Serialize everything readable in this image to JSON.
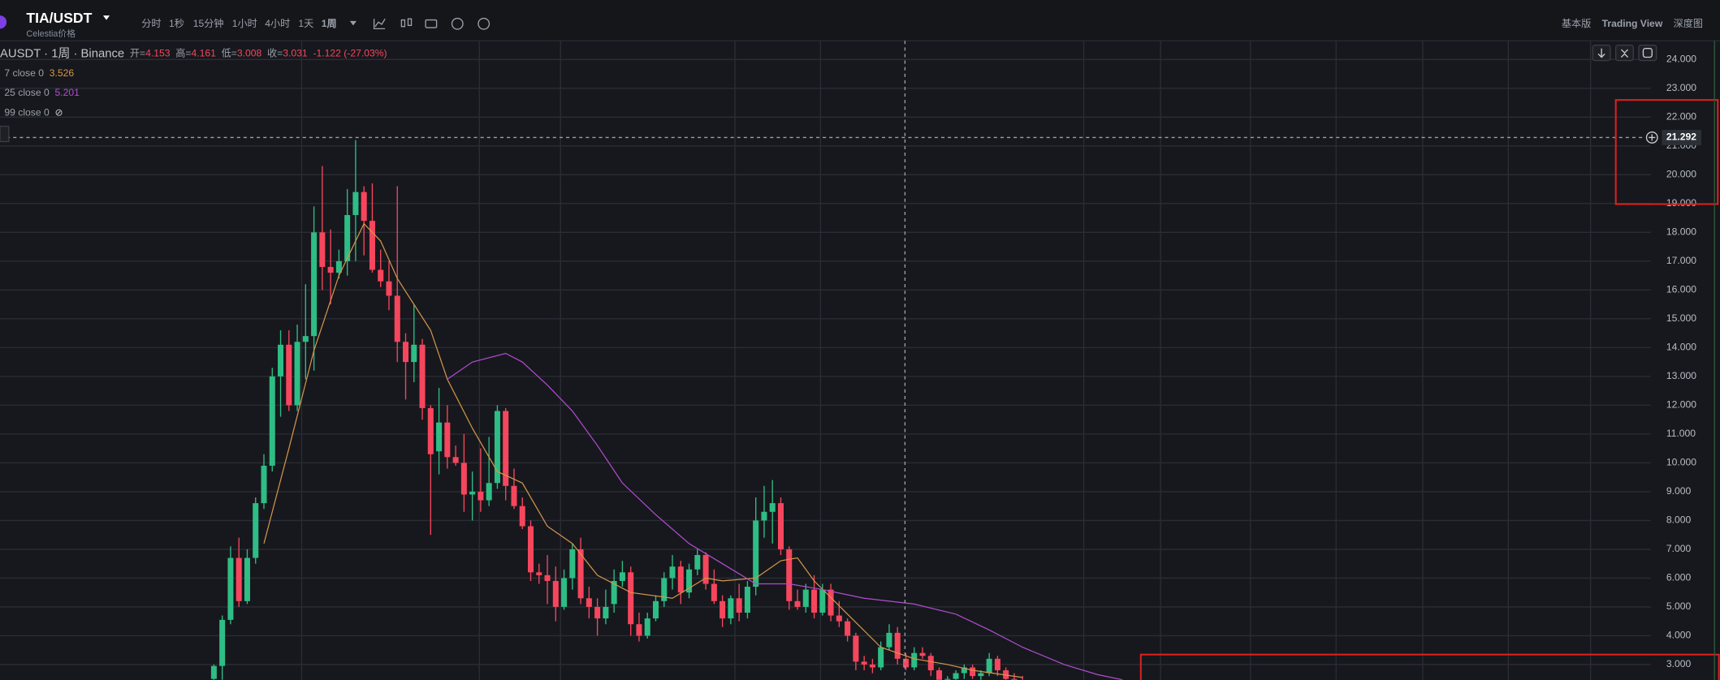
{
  "header": {
    "symbol": "TIA/USDT",
    "subtitle": "Celestia价格",
    "timeframes": [
      "分时",
      "1秒",
      "15分钟",
      "1小时",
      "4小时",
      "1天",
      "1周"
    ],
    "views": [
      "基本版",
      "Trading View",
      "深度图"
    ]
  },
  "chart_data": {
    "type": "candlestick",
    "title": "AUSDT · 1周 · Binance",
    "ohlc_labels": [
      "开=",
      "高=",
      "低=",
      "收="
    ],
    "ohlc_values": [
      4.153,
      4.161,
      3.008,
      3.031
    ],
    "change": "-1.122 (-27.03%)",
    "up_color": "#2ebd85",
    "down_color": "#f6465d",
    "candles": {
      "open": [
        2.5,
        2.95,
        4.55,
        6.7,
        5.2,
        6.7,
        8.6,
        9.9,
        13.0,
        14.1,
        12.0,
        14.2,
        14.4,
        18.0,
        16.8,
        16.6,
        17.0,
        18.6,
        19.4,
        18.4,
        16.7,
        16.3,
        15.8,
        14.2,
        13.5,
        14.1,
        11.9,
        10.4,
        11.4,
        10.2,
        10.0,
        8.9,
        9.0,
        8.7,
        9.3,
        11.8,
        9.2,
        8.5,
        7.8,
        6.2,
        6.1,
        5.9,
        5.0,
        6.0,
        7.0,
        5.3,
        5.0,
        4.6,
        5.1,
        5.9,
        6.2,
        4.4,
        4.0,
        4.6,
        5.2,
        6.0,
        6.4,
        5.5,
        6.3,
        6.8,
        5.8,
        5.2,
        4.6,
        5.3,
        4.8,
        5.7,
        8.0,
        8.3,
        8.6,
        7.0,
        5.2,
        5.0,
        5.6,
        4.8,
        5.6,
        4.7,
        4.5,
        4.0,
        3.1,
        3.0,
        2.9,
        3.6,
        4.1,
        3.2,
        2.9,
        3.4,
        3.3,
        2.8,
        2.4,
        2.5,
        2.7,
        2.9,
        2.6,
        2.7,
        3.2,
        2.8,
        2.5,
        2.4
      ],
      "high": [
        3.0,
        4.7,
        7.1,
        7.4,
        7.0,
        8.8,
        10.3,
        13.3,
        14.6,
        14.6,
        14.8,
        16.2,
        18.9,
        20.3,
        18.1,
        17.4,
        19.5,
        21.2,
        19.6,
        19.7,
        17.4,
        17.0,
        19.6,
        14.5,
        15.5,
        14.3,
        12.0,
        12.6,
        12.0,
        10.6,
        11.0,
        9.7,
        10.5,
        10.9,
        12.0,
        11.9,
        9.8,
        8.8,
        8.0,
        6.5,
        6.8,
        6.4,
        6.3,
        7.2,
        7.4,
        5.7,
        5.3,
        5.6,
        6.3,
        6.6,
        6.4,
        4.8,
        4.8,
        5.4,
        6.2,
        6.8,
        6.6,
        6.5,
        7.0,
        6.9,
        6.3,
        5.4,
        5.4,
        5.8,
        5.9,
        8.8,
        9.2,
        9.4,
        8.8,
        7.1,
        5.6,
        5.8,
        6.1,
        5.8,
        5.8,
        5.2,
        4.6,
        4.1,
        3.3,
        3.2,
        3.8,
        4.4,
        4.3,
        3.4,
        3.6,
        3.6,
        3.4,
        2.9,
        2.6,
        2.8,
        3.0,
        3.0,
        2.8,
        3.4,
        3.3,
        2.9,
        2.7,
        2.6
      ],
      "low": [
        2.4,
        2.4,
        4.4,
        5.0,
        5.1,
        6.5,
        8.4,
        9.7,
        11.6,
        11.8,
        11.8,
        12.9,
        13.2,
        16.0,
        15.5,
        16.4,
        16.5,
        17.0,
        17.2,
        16.6,
        16.1,
        15.3,
        13.5,
        12.2,
        12.8,
        11.5,
        7.5,
        9.6,
        9.8,
        9.9,
        8.3,
        8.0,
        8.3,
        8.5,
        9.1,
        8.7,
        8.4,
        7.7,
        5.9,
        5.8,
        5.1,
        4.5,
        4.9,
        5.6,
        5.1,
        4.6,
        4.0,
        4.4,
        4.8,
        5.7,
        4.0,
        3.8,
        3.9,
        4.5,
        5.0,
        5.6,
        5.1,
        5.3,
        6.1,
        5.6,
        5.1,
        4.3,
        4.4,
        4.5,
        4.6,
        5.4,
        7.4,
        7.2,
        6.8,
        4.9,
        4.9,
        4.8,
        4.6,
        4.7,
        4.5,
        4.3,
        3.8,
        2.8,
        2.8,
        2.7,
        2.8,
        3.5,
        3.0,
        2.8,
        2.8,
        3.2,
        2.6,
        2.3,
        2.2,
        2.4,
        2.5,
        2.5,
        2.3,
        2.6,
        2.6,
        2.4,
        2.3,
        2.2
      ],
      "close": [
        2.95,
        4.55,
        6.7,
        5.2,
        6.7,
        8.6,
        9.9,
        13.0,
        14.1,
        12.0,
        14.2,
        14.4,
        18.0,
        16.8,
        16.6,
        17.0,
        18.6,
        19.4,
        18.4,
        16.7,
        16.3,
        15.8,
        14.2,
        13.5,
        14.1,
        11.9,
        10.3,
        11.4,
        10.2,
        10.0,
        8.9,
        9.0,
        8.7,
        9.3,
        11.8,
        9.2,
        8.5,
        7.8,
        6.2,
        6.1,
        5.9,
        5.0,
        6.0,
        7.0,
        5.3,
        5.0,
        4.6,
        5.0,
        5.9,
        6.2,
        4.4,
        4.0,
        4.6,
        5.2,
        6.0,
        6.4,
        5.5,
        6.3,
        6.8,
        5.8,
        5.2,
        4.6,
        5.3,
        4.8,
        5.7,
        8.0,
        8.3,
        8.6,
        7.0,
        5.2,
        5.0,
        5.6,
        4.8,
        5.6,
        4.7,
        4.5,
        4.0,
        3.1,
        3.0,
        2.9,
        3.6,
        4.1,
        3.2,
        2.9,
        3.4,
        3.3,
        2.8,
        2.4,
        2.5,
        2.7,
        2.9,
        2.6,
        2.7,
        3.2,
        2.8,
        2.5,
        2.4,
        2.3
      ]
    },
    "indicators": [
      {
        "name": "7 close 0",
        "value": 3.526,
        "color": "#d4964a",
        "x": [
          6,
          9,
          12,
          15,
          18,
          20,
          22,
          26,
          28,
          31,
          34,
          37,
          40,
          43,
          46,
          50,
          55,
          59,
          61,
          65,
          68,
          70,
          72,
          76,
          80,
          84,
          88,
          91,
          97
        ],
        "values": [
          7.2,
          10.5,
          13.9,
          16.5,
          18.3,
          17.7,
          16.4,
          14.6,
          12.9,
          11.2,
          9.7,
          9.3,
          7.8,
          7.2,
          6.1,
          5.5,
          5.3,
          6.0,
          5.9,
          6.0,
          6.6,
          6.7,
          5.9,
          4.75,
          3.6,
          3.2,
          3.0,
          2.8,
          2.55
        ]
      },
      {
        "name": "25 close 0",
        "value": 5.201,
        "color": "#b04dd0",
        "x": [
          28,
          31,
          35,
          37,
          40,
          43,
          46,
          49,
          53,
          57,
          61,
          65,
          69,
          73,
          78,
          84,
          89,
          93,
          97,
          102,
          106,
          109
        ],
        "values": [
          12.9,
          13.5,
          13.8,
          13.5,
          12.7,
          11.8,
          10.6,
          9.3,
          8.2,
          7.2,
          6.5,
          5.8,
          5.8,
          5.6,
          5.3,
          5.1,
          4.75,
          4.2,
          3.6,
          3.0,
          2.65,
          2.47
        ]
      },
      {
        "name": "99 close 0",
        "value": "⊘"
      }
    ],
    "ylim": [
      2.47,
      24.65
    ],
    "yticks": [
      {
        "value": 3,
        "label": "3.000"
      },
      {
        "value": 4,
        "label": "4.000"
      },
      {
        "value": 5,
        "label": "5.000"
      },
      {
        "value": 6,
        "label": "6.000"
      },
      {
        "value": 7,
        "label": "7.000"
      },
      {
        "value": 8,
        "label": "8.000"
      },
      {
        "value": 9,
        "label": "9.000"
      },
      {
        "value": 10,
        "label": "10.000"
      },
      {
        "value": 11,
        "label": "11.000"
      },
      {
        "value": 12,
        "label": "12.000"
      },
      {
        "value": 13,
        "label": "13.000"
      },
      {
        "value": 14,
        "label": "14.000"
      },
      {
        "value": 15,
        "label": "15.000"
      },
      {
        "value": 16,
        "label": "16.000"
      },
      {
        "value": 17,
        "label": "17.000"
      },
      {
        "value": 18,
        "label": "18.000"
      },
      {
        "value": 19,
        "label": "19.000"
      },
      {
        "value": 20,
        "label": "20.000"
      },
      {
        "value": 21,
        "label": "21.000"
      },
      {
        "value": 22,
        "label": "22.000"
      },
      {
        "value": 23,
        "label": "23.000"
      },
      {
        "value": 24,
        "label": "24.000"
      }
    ],
    "grid": true,
    "crosshair_price": 21.292
  }
}
